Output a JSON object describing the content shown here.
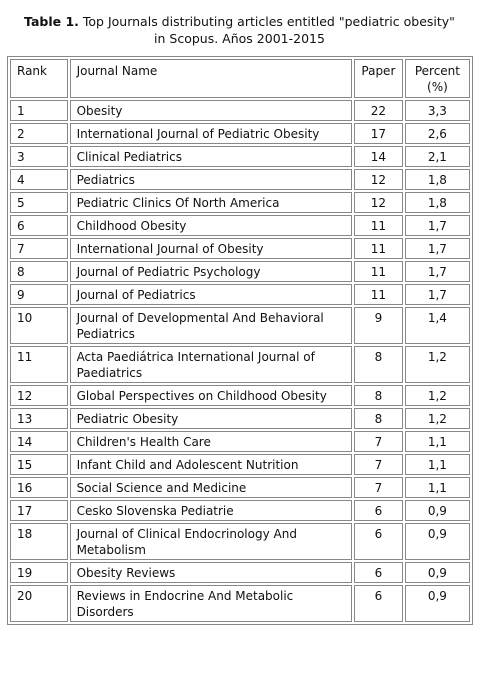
{
  "caption": {
    "label": "Table 1.",
    "text": "Top Journals distributing articles entitled \"pediatric obesity\" in Scopus. Años 2001-2015"
  },
  "table": {
    "headers": [
      "Rank",
      "Journal Name",
      "Paper",
      "Percent (%)"
    ],
    "rows": [
      [
        "1",
        "Obesity",
        "22",
        "3,3"
      ],
      [
        "2",
        "International Journal of Pediatric Obesity",
        "17",
        "2,6"
      ],
      [
        "3",
        "Clinical Pediatrics",
        "14",
        "2,1"
      ],
      [
        "4",
        "Pediatrics",
        "12",
        "1,8"
      ],
      [
        "5",
        "Pediatric Clinics Of North America",
        "12",
        "1,8"
      ],
      [
        "6",
        "Childhood Obesity",
        "11",
        "1,7"
      ],
      [
        "7",
        "International Journal of Obesity",
        "11",
        "1,7"
      ],
      [
        "8",
        "Journal of Pediatric Psychology",
        "11",
        "1,7"
      ],
      [
        "9",
        "Journal of Pediatrics",
        "11",
        "1,7"
      ],
      [
        "10",
        "Journal of Developmental And Behavioral Pediatrics",
        "9",
        "1,4"
      ],
      [
        "11",
        "Acta Paediátrica International Journal of Paediatrics",
        "8",
        "1,2"
      ],
      [
        "12",
        "Global Perspectives on Childhood Obesity",
        "8",
        "1,2"
      ],
      [
        "13",
        "Pediatric Obesity",
        "8",
        "1,2"
      ],
      [
        "14",
        "Children's Health Care",
        "7",
        "1,1"
      ],
      [
        "15",
        "Infant Child and Adolescent Nutrition",
        "7",
        "1,1"
      ],
      [
        "16",
        "Social Science and Medicine",
        "7",
        "1,1"
      ],
      [
        "17",
        "Cesko Slovenska Pediatrie",
        "6",
        "0,9"
      ],
      [
        "18",
        "Journal of Clinical Endocrinology And Metabolism",
        "6",
        "0,9"
      ],
      [
        "19",
        "Obesity Reviews",
        "6",
        "0,9"
      ],
      [
        "20",
        "Reviews in Endocrine And Metabolic Disorders",
        "6",
        "0,9"
      ]
    ]
  }
}
